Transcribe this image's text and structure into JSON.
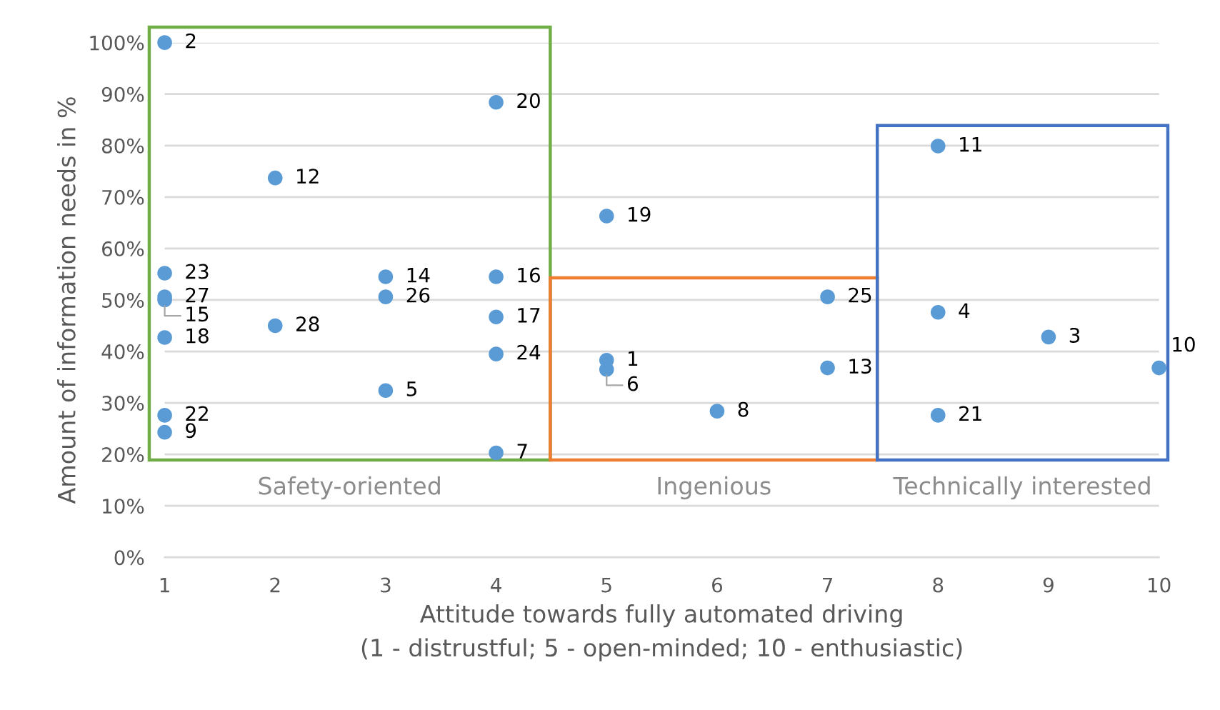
{
  "chart_data": {
    "type": "scatter",
    "xlabel": "Attitude towards fully automated driving\n(1 - distrustful; 5 - open-minded; 10 - enthusiastic)",
    "ylabel": "Amount of information needs in %",
    "x": [
      1,
      4,
      2,
      1,
      1,
      1,
      1,
      1,
      1,
      2,
      3,
      3,
      3,
      4,
      4,
      4,
      4,
      5,
      5,
      5,
      6,
      7,
      7,
      8,
      8,
      9,
      10,
      8
    ],
    "values": [
      100,
      88.4,
      73.7,
      55.2,
      50.6,
      50,
      42.7,
      27.6,
      24.3,
      45,
      54.5,
      50.6,
      32.4,
      54.5,
      46.7,
      39.5,
      20.3,
      66.3,
      38.3,
      36.5,
      28.4,
      50.6,
      36.8,
      79.9,
      47.6,
      42.8,
      36.8,
      27.6
    ],
    "color": "#5b9bd5",
    "marker": "circle",
    "xlim": [
      1,
      10
    ],
    "xticks": [
      1,
      2,
      3,
      4,
      5,
      6,
      7,
      8,
      9,
      10
    ],
    "ylim": [
      0,
      100
    ],
    "yticks": [
      {
        "value": 0,
        "label": "0%"
      },
      {
        "value": 10,
        "label": "10%"
      },
      {
        "value": 20,
        "label": "20%"
      },
      {
        "value": 30,
        "label": "30%"
      },
      {
        "value": 40,
        "label": "40%"
      },
      {
        "value": 50,
        "label": "50%"
      },
      {
        "value": 60,
        "label": "60%"
      },
      {
        "value": 70,
        "label": "70%"
      },
      {
        "value": 80,
        "label": "80%"
      },
      {
        "value": 90,
        "label": "90%"
      },
      {
        "value": 100,
        "label": "100%"
      }
    ],
    "grid": "y",
    "annotations": [
      {
        "text": "2",
        "x": 1,
        "y": 100
      },
      {
        "text": "20",
        "x": 4,
        "y": 88.4
      },
      {
        "text": "12",
        "x": 2,
        "y": 73.7
      },
      {
        "text": "23",
        "x": 1,
        "y": 55.2
      },
      {
        "text": "27",
        "x": 1,
        "y": 50.6
      },
      {
        "text": "15",
        "x": 1,
        "y": 50
      },
      {
        "text": "18",
        "x": 1,
        "y": 42.7
      },
      {
        "text": "22",
        "x": 1,
        "y": 27.6
      },
      {
        "text": "9",
        "x": 1,
        "y": 24.3
      },
      {
        "text": "28",
        "x": 2,
        "y": 45
      },
      {
        "text": "14",
        "x": 3,
        "y": 54.5
      },
      {
        "text": "26",
        "x": 3,
        "y": 50.6
      },
      {
        "text": "5",
        "x": 3,
        "y": 32.4
      },
      {
        "text": "16",
        "x": 4,
        "y": 54.5
      },
      {
        "text": "17",
        "x": 4,
        "y": 46.7
      },
      {
        "text": "24",
        "x": 4,
        "y": 39.5
      },
      {
        "text": "7",
        "x": 4,
        "y": 20.3
      },
      {
        "text": "19",
        "x": 5,
        "y": 66.3
      },
      {
        "text": "1",
        "x": 5,
        "y": 38.3
      },
      {
        "text": "6",
        "x": 5,
        "y": 36.5
      },
      {
        "text": "8",
        "x": 6,
        "y": 28.4
      },
      {
        "text": "25",
        "x": 7,
        "y": 50.6
      },
      {
        "text": "13",
        "x": 7,
        "y": 36.8
      },
      {
        "text": "11",
        "x": 8,
        "y": 79.9
      },
      {
        "text": "4",
        "x": 8,
        "y": 47.6
      },
      {
        "text": "3",
        "x": 9,
        "y": 42.8
      },
      {
        "text": "10",
        "x": 10,
        "y": 36.8
      },
      {
        "text": "21",
        "x": 8,
        "y": 27.6
      },
      "Safety-oriented",
      "Ingenious",
      "Technically interested"
    ]
  }
}
